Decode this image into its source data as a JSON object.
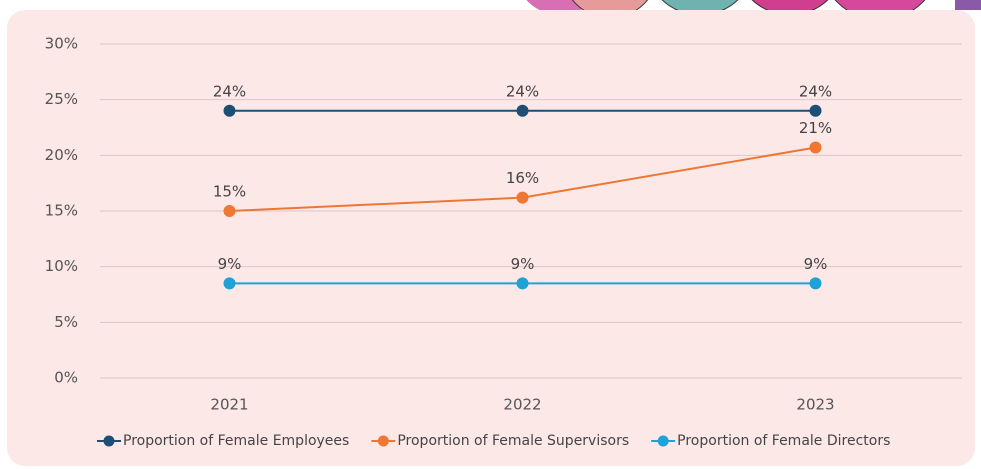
{
  "chart_data": {
    "type": "line",
    "categories": [
      "2021",
      "2022",
      "2023"
    ],
    "series": [
      {
        "name": "Proportion of Female Employees",
        "color": "#1d4f76",
        "values": [
          24,
          24,
          24
        ],
        "value_labels": [
          "24%",
          "24%",
          "24%"
        ]
      },
      {
        "name": "Proportion of Female Supervisors",
        "color": "#ee7733",
        "values": [
          15,
          16.2,
          20.7
        ],
        "value_labels": [
          "15%",
          "16%",
          "21%"
        ]
      },
      {
        "name": "Proportion of Female Directors",
        "color": "#1ea2d7",
        "values": [
          8.5,
          8.5,
          8.5
        ],
        "value_labels": [
          "9%",
          "9%",
          "9%"
        ]
      }
    ],
    "ylim": [
      0,
      30
    ],
    "yticks": [
      {
        "value": 0,
        "label": "0%"
      },
      {
        "value": 5,
        "label": "5%"
      },
      {
        "value": 10,
        "label": "10%"
      },
      {
        "value": 15,
        "label": "15%"
      },
      {
        "value": 20,
        "label": "20%"
      },
      {
        "value": 25,
        "label": "25%"
      },
      {
        "value": 30,
        "label": "30%"
      }
    ],
    "grid": true,
    "legend": "bottom"
  }
}
